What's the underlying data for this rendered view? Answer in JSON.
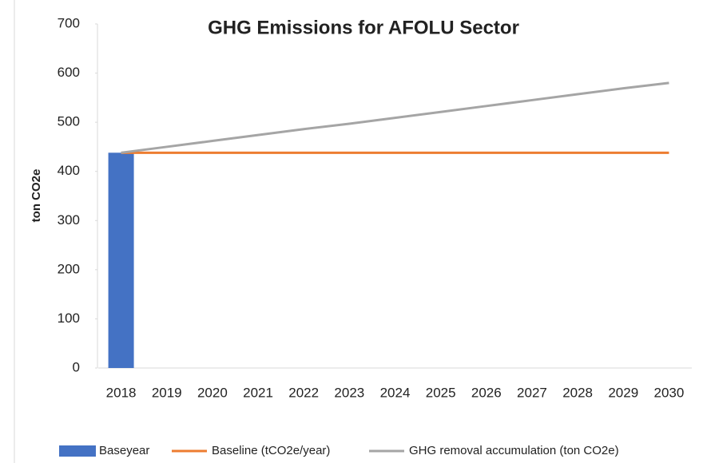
{
  "chart_data": {
    "type": "combo",
    "title": "GHG Emissions for AFOLU Sector",
    "y_label": "ton CO2e",
    "categories": [
      "2018",
      "2019",
      "2020",
      "2021",
      "2022",
      "2023",
      "2024",
      "2025",
      "2026",
      "2027",
      "2028",
      "2029",
      "2030"
    ],
    "series": [
      {
        "name": "Baseyear",
        "type": "bar",
        "color": "#4472c4",
        "values": [
          438,
          null,
          null,
          null,
          null,
          null,
          null,
          null,
          null,
          null,
          null,
          null,
          null
        ]
      },
      {
        "name": "Baseline (tCO2e/year)",
        "type": "line",
        "color": "#ed7d31",
        "values": [
          438,
          438,
          438,
          438,
          438,
          438,
          438,
          438,
          438,
          438,
          438,
          438,
          438
        ]
      },
      {
        "name": "GHG removal accumulation (ton CO2e)",
        "type": "line",
        "color": "#a5a5a5",
        "values": [
          438,
          450,
          462,
          474,
          486,
          497,
          509,
          521,
          533,
          545,
          557,
          569,
          580
        ]
      }
    ],
    "ylim": [
      0,
      700
    ],
    "yticks": [
      0,
      100,
      200,
      300,
      400,
      500,
      600,
      700
    ],
    "grid": false
  }
}
